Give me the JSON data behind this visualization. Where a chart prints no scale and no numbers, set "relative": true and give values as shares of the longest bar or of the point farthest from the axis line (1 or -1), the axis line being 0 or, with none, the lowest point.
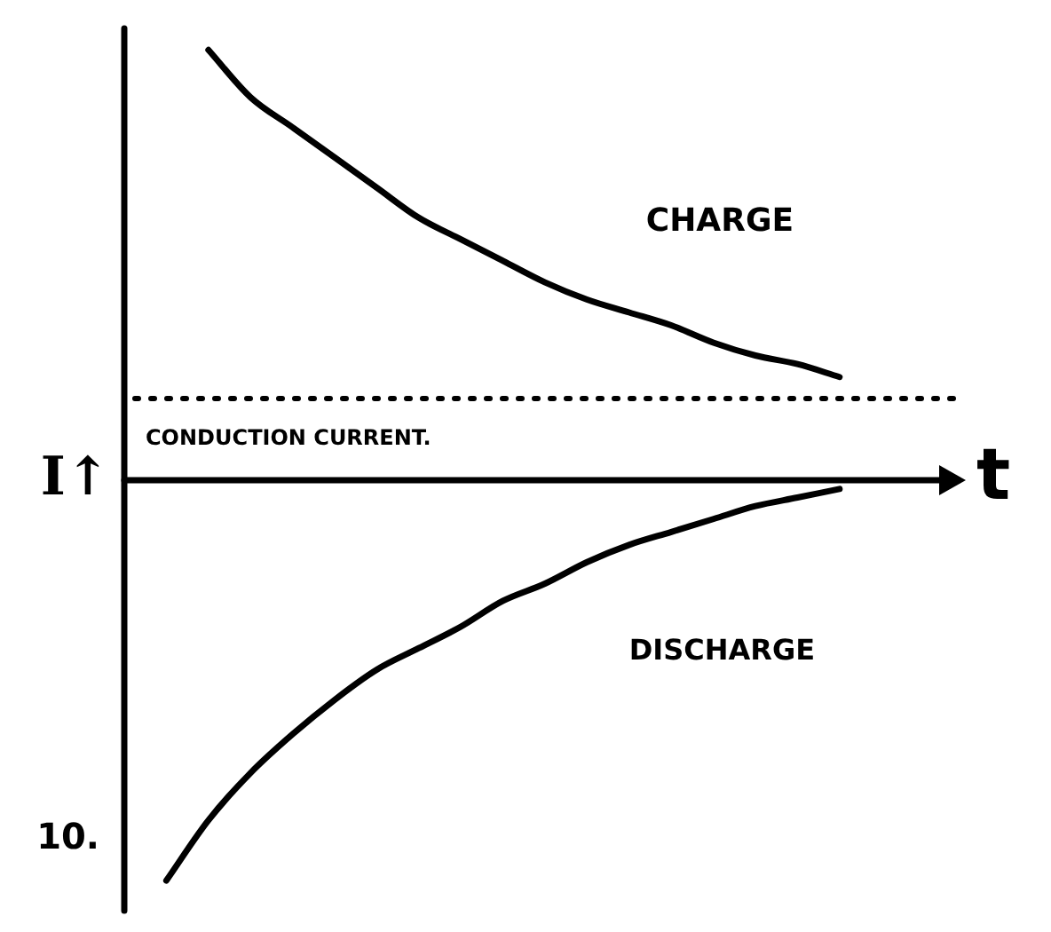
{
  "chart_data": {
    "type": "line",
    "relative": true,
    "xlabel": "t",
    "ylabel": "I↑",
    "marker": "none",
    "categories": [
      null,
      null,
      null,
      null,
      null,
      null,
      null,
      null,
      null,
      null,
      null,
      null,
      null,
      null,
      null,
      null,
      null,
      null,
      null,
      null,
      null
    ],
    "series": [
      {
        "color": "#000000",
        "values": [
          null,
          null,
          1,
          0.89,
          0.82,
          0.75,
          0.68,
          0.61,
          0.56,
          0.51,
          0.46,
          0.42,
          0.39,
          0.36,
          0.32,
          0.29,
          0.27,
          0.24,
          null,
          null,
          null
        ]
      },
      {
        "color": "#000000",
        "values": [
          null,
          -0.93,
          -0.79,
          -0.68,
          -0.59,
          -0.51,
          -0.44,
          -0.39,
          -0.34,
          -0.28,
          -0.24,
          -0.19,
          -0.15,
          -0.12,
          -0.09,
          -0.06,
          -0.04,
          -0.02,
          null,
          null,
          null
        ]
      }
    ],
    "ref_lines": [
      {
        "axis": "y",
        "value": 0.19,
        "label": "CONDUCTION CURRENT.",
        "line_style": "dotted",
        "color": "#000000"
      }
    ],
    "annotations": [
      "CHARGE",
      "DISCHARGE",
      "10."
    ]
  }
}
